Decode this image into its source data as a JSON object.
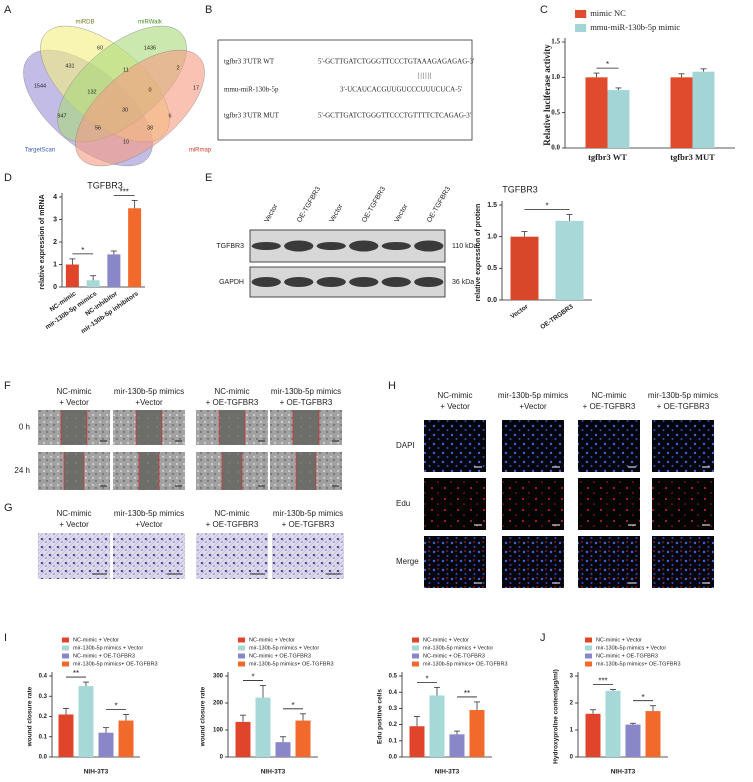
{
  "panel_labels": [
    "A",
    "B",
    "C",
    "D",
    "E",
    "F",
    "G",
    "H",
    "I",
    "J"
  ],
  "venn": {
    "sets": [
      "miRDB",
      "miRWalk",
      "TargetScan",
      "miRmap"
    ],
    "counts": [
      60,
      1436,
      431,
      11,
      2,
      1544,
      132,
      0,
      17,
      947,
      30,
      6,
      56,
      38,
      10
    ]
  },
  "sequence": {
    "rows": [
      {
        "label": "tgfbr3 3'UTR WT",
        "seq": "5'-GCTTGATCTGGGTTCCCTGTAAAGAGAGAG-3'"
      },
      {
        "label": "mmu-miR-130b-5p",
        "seq": "3'-UCAUCACGUUGUCCCUUUCUCA-5'"
      },
      {
        "label": "tgfbr3 3'UTR MUT",
        "seq": "5'-GCTTGATCTGGGTTCCCTGTTTTCTCAGAG-3'"
      }
    ],
    "pairing": "||||||"
  },
  "blot": {
    "lanes": [
      "Vector",
      "OE-TGFBR3",
      "Vector",
      "OE-TGFBR3",
      "Vector",
      "OE-TGFBR3"
    ],
    "bands": [
      "TGFBR3",
      "GAPDH"
    ],
    "sizes": [
      "110 kDa",
      "36 kDa"
    ]
  },
  "wound": {
    "columns": [
      [
        "NC-mimic",
        "+ Vector"
      ],
      [
        "mir-130b-5p mimics",
        "+Vector"
      ],
      [
        "NC-mimic",
        "+ OE-TGFBR3"
      ],
      [
        "mir-130b-5p mimics",
        "+ OE-TGFBR3"
      ]
    ],
    "rows": [
      "0 h",
      "24 h"
    ]
  },
  "transwell": {
    "columns": [
      [
        "NC-mimic",
        "+ Vector"
      ],
      [
        "mir-130b-5p mimics",
        "+Vector"
      ],
      [
        "NC-mimic",
        "+ OE-TGFBR3"
      ],
      [
        "mir-130b-5p mimics",
        "+ OE-TGFBR3"
      ]
    ]
  },
  "edu": {
    "columns": [
      [
        "NC-mimic",
        "+ Vector"
      ],
      [
        "mir-130b-5p mimics",
        "+Vector"
      ],
      [
        "NC-mimic",
        "+ OE-TGFBR3"
      ],
      [
        "mir-130b-5p mimics",
        "+ OE-TGFBR3"
      ]
    ],
    "rows": [
      "DAPI",
      "Edu",
      "Merge"
    ]
  },
  "chart_data": [
    {
      "type": "bar",
      "y_label": "Relative luciferase activity",
      "categories": [
        "tgfbr3 WT",
        "tgfbr3 MUT"
      ],
      "series": [
        {
          "name": "mimic NC",
          "color": "#e04a2d",
          "values": [
            1.0,
            1.0
          ],
          "errors": [
            0.06,
            0.05
          ]
        },
        {
          "name": "mmu-miR-130b-5p mimic",
          "color": "#a3d5d6",
          "values": [
            0.82,
            1.08
          ],
          "errors": [
            0.03,
            0.04
          ]
        }
      ],
      "ylim": [
        0,
        1.5
      ],
      "yticks": [
        {
          "value": 0,
          "label": "0.0"
        },
        0.5,
        {
          "value": 1,
          "label": "1.0"
        },
        {
          "value": 1.5,
          "label": "1.5"
        }
      ],
      "annotations": [
        "*"
      ],
      "legend": "top"
    },
    {
      "type": "bar",
      "title": "TGFBR3",
      "y_label": "relative expression of mRNA",
      "categories": [
        "NC-mimic",
        "mir-130b-5p mimics",
        "NC-inhibitor",
        "mir-130b-5p inhibitors"
      ],
      "values": [
        1.0,
        0.3,
        1.45,
        3.5
      ],
      "errors": [
        0.25,
        0.2,
        0.15,
        0.35
      ],
      "colors": [
        "#e0452b",
        "#a6d8d8",
        "#8a87c9",
        "#f26a2b"
      ],
      "ylim": [
        0,
        4
      ],
      "yticks": [
        0,
        1,
        2,
        3,
        4
      ],
      "annotations": [
        "*",
        "***"
      ]
    },
    {
      "type": "bar",
      "title": "TGFBR3",
      "y_label": "relative expression of protien",
      "categories": [
        "Vector",
        "OE-TRGBR3"
      ],
      "values": [
        1.0,
        1.25
      ],
      "errors": [
        0.08,
        0.1
      ],
      "colors": [
        "#d9472a",
        "#a8d8d8"
      ],
      "ylim": [
        0,
        1.5
      ],
      "yticks": [
        {
          "value": 0,
          "label": "0.0"
        },
        0.5,
        {
          "value": 1,
          "label": "1.0"
        },
        {
          "value": 1.5,
          "label": "1.5"
        }
      ],
      "annotations": [
        "*"
      ]
    },
    {
      "type": "bar",
      "y_label": "wound closure rate",
      "categories": [
        "NIH-3T3"
      ],
      "series": [
        {
          "name": "NC-mimic + Vector",
          "color": "#e0452b",
          "values": [
            0.21
          ],
          "errors": [
            0.03
          ]
        },
        {
          "name": "mir-130b-5p mimics + Vector",
          "color": "#a6d8d8",
          "values": [
            0.35
          ],
          "errors": [
            0.02
          ]
        },
        {
          "name": "NC-mimic + OE-TGFBR3",
          "color": "#8a87c9",
          "values": [
            0.12
          ],
          "errors": [
            0.025
          ]
        },
        {
          "name": "mir-130b-5p mimics+ OE-TGFBR3",
          "color": "#f26a2b",
          "values": [
            0.18
          ],
          "errors": [
            0.03
          ]
        }
      ],
      "ylim": [
        0,
        0.4
      ],
      "yticks": [
        {
          "value": 0,
          "label": "0.0"
        },
        0.1,
        0.2,
        0.3,
        0.4
      ],
      "annotations": [
        "**",
        "*"
      ],
      "legend": "top"
    },
    {
      "type": "bar",
      "y_label": "wound closure rate",
      "categories": [
        "NIH-3T3"
      ],
      "series": [
        {
          "name": "NC-mimic + Vector",
          "color": "#e0452b",
          "values": [
            130
          ],
          "errors": [
            25
          ]
        },
        {
          "name": "mir-130b-5p mimics + Vector",
          "color": "#a6d8d8",
          "values": [
            220
          ],
          "errors": [
            45
          ]
        },
        {
          "name": "NC-mimic + OE-TGFBR3",
          "color": "#8a87c9",
          "values": [
            55
          ],
          "errors": [
            20
          ]
        },
        {
          "name": "mir-130b-5p mimics+ OE-TGFBR3",
          "color": "#f26a2b",
          "values": [
            135
          ],
          "errors": [
            25
          ]
        }
      ],
      "ylim": [
        0,
        300
      ],
      "yticks": [
        0,
        100,
        200,
        300
      ],
      "annotations": [
        "*",
        "*"
      ],
      "legend": "top"
    },
    {
      "type": "bar",
      "y_label": "Edu positive cells",
      "categories": [
        "NIH-3T3"
      ],
      "series": [
        {
          "name": "NC-mimic + Vector",
          "color": "#e0452b",
          "values": [
            0.19
          ],
          "errors": [
            0.06
          ]
        },
        {
          "name": "mir-130b-5p mimics + Vector",
          "color": "#a6d8d8",
          "values": [
            0.38
          ],
          "errors": [
            0.05
          ]
        },
        {
          "name": "NC-mimic + OE-TGFBR3",
          "color": "#8a87c9",
          "values": [
            0.14
          ],
          "errors": [
            0.02
          ]
        },
        {
          "name": "mir-130b-5p mimics+ OE-TGFBR3",
          "color": "#f26a2b",
          "values": [
            0.29
          ],
          "errors": [
            0.05
          ]
        }
      ],
      "ylim": [
        0,
        0.5
      ],
      "yticks": [
        {
          "value": 0,
          "label": "0.0"
        },
        0.1,
        0.2,
        0.3,
        0.4,
        0.5
      ],
      "annotations": [
        "*",
        "**"
      ],
      "legend": "top"
    },
    {
      "type": "bar",
      "y_label": "Hydroxyproline content(μg/ml)",
      "categories": [
        "NIH-3T3"
      ],
      "series": [
        {
          "name": "NC-mimic + Vector",
          "color": "#e0452b",
          "values": [
            1.6
          ],
          "errors": [
            0.15
          ]
        },
        {
          "name": "mir-130b-5p mimics + Vector",
          "color": "#a6d8d8",
          "values": [
            2.45
          ],
          "errors": [
            0.05
          ]
        },
        {
          "name": "NC-mimic + OE-TGFBR3",
          "color": "#8a87c9",
          "values": [
            1.2
          ],
          "errors": [
            0.05
          ]
        },
        {
          "name": "mir-130b-5p mimics+ OE-TGFBR3",
          "color": "#f26a2b",
          "values": [
            1.7
          ],
          "errors": [
            0.2
          ]
        }
      ],
      "ylim": [
        0,
        3
      ],
      "yticks": [
        0,
        1,
        2,
        3
      ],
      "annotations": [
        "***",
        "*"
      ],
      "legend": "top"
    }
  ]
}
